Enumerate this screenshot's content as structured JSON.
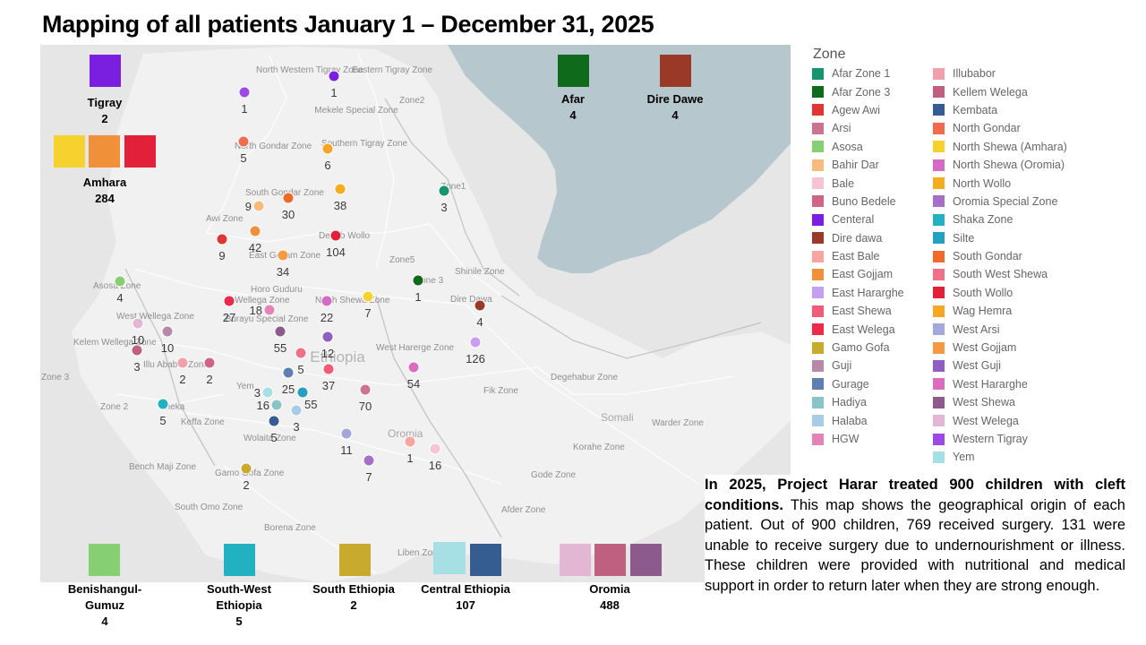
{
  "title": "Mapping of all patients January 1 – December 31, 2025",
  "map": {
    "country_label": "Ethiopia",
    "neighbor_labels": [
      "Somali",
      "Afar",
      "Oromia"
    ],
    "zone_labels": [
      "North Western Tigray Zone",
      "Eastern Tigray Zone",
      "Mekele Special Zone",
      "Southern Tigray Zone",
      "North Gondar Zone",
      "South Gondar Zone",
      "Awi Zone",
      "Debub Wollo",
      "East Gojjam Zone",
      "Zone2",
      "Zone1",
      "Zone5",
      "Zone 3",
      "Shinile Zone",
      "Dire Dawa",
      "Asosa Zone",
      "Horo Guduru",
      "Wellega Zone",
      "North Shewa Zone",
      "Burayu Special Zone",
      "West Wellega Zone",
      "Kelem Wellega Zone",
      "Illu Ababor Zone",
      "Zone 3",
      "Zone 2",
      "Sheka",
      "Keffa Zone",
      "Yem",
      "Wolaita Zone",
      "West Harerge Zone",
      "Fik Zone",
      "Degehabur Zone",
      "Warder Zone",
      "Korahe Zone",
      "Bench Maji Zone",
      "Gamo Gofa Zone",
      "South Omo Zone",
      "Gode Zone",
      "Afder Zone",
      "Borena Zone",
      "Liben Zone"
    ],
    "zones": [
      {
        "name": "Western Tigray",
        "color": "#9b4ae6",
        "count": "1"
      },
      {
        "name": "Centeral",
        "color": "#7a1ee0",
        "count": "1"
      },
      {
        "name": "North Gondar",
        "color": "#f26b4f",
        "count": "5"
      },
      {
        "name": "Wag Hemra",
        "color": "#f5a623",
        "count": "6"
      },
      {
        "name": "Bahir Dar",
        "color": "#f7bb7e",
        "count": "9"
      },
      {
        "name": "South Gondar",
        "color": "#f06a2a",
        "count": "30"
      },
      {
        "name": "North Wollo",
        "color": "#f2ae1c",
        "count": "38"
      },
      {
        "name": "Afar Zone 1",
        "color": "#17936d",
        "count": "3"
      },
      {
        "name": "Agew Awi",
        "color": "#e03535",
        "count": "9"
      },
      {
        "name": "East Gojjam",
        "color": "#f0903a",
        "count": "42"
      },
      {
        "name": "South Wollo",
        "color": "#e3203a",
        "count": "104"
      },
      {
        "name": "West Gojjam",
        "color": "#f59a43",
        "count": "34"
      },
      {
        "name": "Afar Zone 3",
        "color": "#106a1b",
        "count": "1"
      },
      {
        "name": "Asosa",
        "color": "#86cf73",
        "count": "4"
      },
      {
        "name": "East Welega",
        "color": "#ee2a4a",
        "count": "27"
      },
      {
        "name": "HGW",
        "color": "#e384b6",
        "count": "18"
      },
      {
        "name": "North Shewa (Oromia)",
        "color": "#d26ac6",
        "count": "22"
      },
      {
        "name": "North Shewa (Amhara)",
        "color": "#f5d22e",
        "count": "7"
      },
      {
        "name": "Dire dawa",
        "color": "#993a28",
        "count": "4"
      },
      {
        "name": "West Welega",
        "color": "#e3b6d3",
        "count": "10"
      },
      {
        "name": "Guji",
        "color": "#b888a8",
        "count": "10"
      },
      {
        "name": "West Shewa",
        "color": "#8c5a8c",
        "count": "55"
      },
      {
        "name": "West Guji",
        "color": "#8e5fc1",
        "count": "12"
      },
      {
        "name": "West Hararghe",
        "color": "#dc6cbd",
        "count": "54"
      },
      {
        "name": "East Hararghe",
        "color": "#c69ff2",
        "count": "126"
      },
      {
        "name": "Kellem Welega",
        "color": "#c06080",
        "count": "3"
      },
      {
        "name": "Illubabor",
        "color": "#f0a0aa",
        "count": "2"
      },
      {
        "name": "Buno Bedele",
        "color": "#d06486",
        "count": "2"
      },
      {
        "name": "South West Shewa",
        "color": "#f07088",
        "count": "5"
      },
      {
        "name": "Gurage",
        "color": "#5f7eb1",
        "count": "25"
      },
      {
        "name": "East Shewa",
        "color": "#f05c78",
        "count": "37"
      },
      {
        "name": "Yem",
        "color": "#a6e0e5",
        "count": "3"
      },
      {
        "name": "Silte",
        "color": "#23a0c2",
        "count": "55"
      },
      {
        "name": "Arsi",
        "color": "#cc7392",
        "count": "70"
      },
      {
        "name": "Hadiya",
        "color": "#88c4c8",
        "count": "16"
      },
      {
        "name": "Shaka Zone",
        "color": "#21b1c1",
        "count": "5"
      },
      {
        "name": "Halaba",
        "color": "#a8cce6",
        "count": "3"
      },
      {
        "name": "Kembata",
        "color": "#355d91",
        "count": "5"
      },
      {
        "name": "West Arsi",
        "color": "#a3a7d9",
        "count": "11"
      },
      {
        "name": "East Bale",
        "color": "#f8a5a0",
        "count": "1"
      },
      {
        "name": "Bale",
        "color": "#f7c4d6",
        "count": "16"
      },
      {
        "name": "Oromia Special Zone",
        "color": "#a56fc8",
        "count": "7"
      },
      {
        "name": "Gamo Gofa",
        "color": "#c8aa2c",
        "count": "2"
      }
    ],
    "region_boxes": [
      {
        "name": "Tigray",
        "total": "2",
        "colors": [
          "#7a1ee0"
        ]
      },
      {
        "name": "Amhara",
        "total": "284",
        "colors": [
          "#f5d22e",
          "#f0903a",
          "#e3203a"
        ]
      },
      {
        "name": "Afar",
        "total": "4",
        "colors": [
          "#106a1b"
        ]
      },
      {
        "name": "Dire Dawe",
        "total": "4",
        "colors": [
          "#993a28"
        ]
      },
      {
        "name": "Benishangul-Gumuz",
        "total": "4",
        "colors": [
          "#86cf73"
        ]
      },
      {
        "name": "South-West Ethiopia",
        "total": "5",
        "colors": [
          "#21b1c1"
        ]
      },
      {
        "name": "South Ethiopia",
        "total": "2",
        "colors": [
          "#c8aa2c"
        ]
      },
      {
        "name": "Central Ethiopia",
        "total": "107",
        "colors": [
          "#a6e0e5",
          "#355d91"
        ]
      },
      {
        "name": "Oromia",
        "total": "488",
        "colors": [
          "#e3b6d3",
          "#c06080",
          "#8c5a8c"
        ]
      }
    ]
  },
  "legend": {
    "title": "Zone",
    "col1": [
      {
        "label": "Afar Zone 1",
        "color": "#17936d"
      },
      {
        "label": "Afar Zone 3",
        "color": "#106a1b"
      },
      {
        "label": "Agew Awi",
        "color": "#e03535"
      },
      {
        "label": "Arsi",
        "color": "#cc7392"
      },
      {
        "label": "Asosa",
        "color": "#86cf73"
      },
      {
        "label": "Bahir Dar",
        "color": "#f7bb7e"
      },
      {
        "label": "Bale",
        "color": "#f7c4d6"
      },
      {
        "label": "Buno Bedele",
        "color": "#d06486"
      },
      {
        "label": "Centeral",
        "color": "#7a1ee0"
      },
      {
        "label": "Dire dawa",
        "color": "#993a28"
      },
      {
        "label": "East Bale",
        "color": "#f8a5a0"
      },
      {
        "label": "East Gojjam",
        "color": "#f0903a"
      },
      {
        "label": "East Hararghe",
        "color": "#c69ff2"
      },
      {
        "label": "East Shewa",
        "color": "#f05c78"
      },
      {
        "label": "East Welega",
        "color": "#ee2a4a"
      },
      {
        "label": "Gamo Gofa",
        "color": "#c8aa2c"
      },
      {
        "label": "Guji",
        "color": "#b888a8"
      },
      {
        "label": "Gurage",
        "color": "#5f7eb1"
      },
      {
        "label": "Hadiya",
        "color": "#88c4c8"
      },
      {
        "label": "Halaba",
        "color": "#a8cce6"
      },
      {
        "label": "HGW",
        "color": "#e384b6"
      }
    ],
    "col2": [
      {
        "label": "Illubabor",
        "color": "#f0a0aa"
      },
      {
        "label": "Kellem Welega",
        "color": "#c06080"
      },
      {
        "label": "Kembata",
        "color": "#355d91"
      },
      {
        "label": "North Gondar",
        "color": "#f26b4f"
      },
      {
        "label": "North Shewa (Amhara)",
        "color": "#f5d22e"
      },
      {
        "label": "North Shewa (Oromia)",
        "color": "#d26ac6"
      },
      {
        "label": "North Wollo",
        "color": "#f2ae1c"
      },
      {
        "label": "Oromia Special Zone",
        "color": "#a56fc8"
      },
      {
        "label": "Shaka Zone",
        "color": "#21b1c1"
      },
      {
        "label": "Silte",
        "color": "#23a0c2"
      },
      {
        "label": "South Gondar",
        "color": "#f06a2a"
      },
      {
        "label": "South West  Shewa",
        "color": "#f07088"
      },
      {
        "label": "South Wollo",
        "color": "#e3203a"
      },
      {
        "label": "Wag Hemra",
        "color": "#f5a623"
      },
      {
        "label": "West Arsi",
        "color": "#a3a7d9"
      },
      {
        "label": "West Gojjam",
        "color": "#f59a43"
      },
      {
        "label": "West Guji",
        "color": "#8e5fc1"
      },
      {
        "label": "West Hararghe",
        "color": "#dc6cbd"
      },
      {
        "label": "West  Shewa",
        "color": "#8c5a8c"
      },
      {
        "label": "West Welega",
        "color": "#e3b6d3"
      },
      {
        "label": "Western Tigray",
        "color": "#9b4ae6"
      },
      {
        "label": "Yem",
        "color": "#a6e0e5"
      }
    ]
  },
  "summary": {
    "bold": "In 2025, Project Harar treated 900 children with cleft conditions.",
    "body": " This map shows the geographical origin of each patient. Out of 900 children, 769 received surgery. 131 were unable to receive surgery due to undernourishment or illness. These children were provided with nutritional and medical support in order to return later when they are strong enough."
  }
}
